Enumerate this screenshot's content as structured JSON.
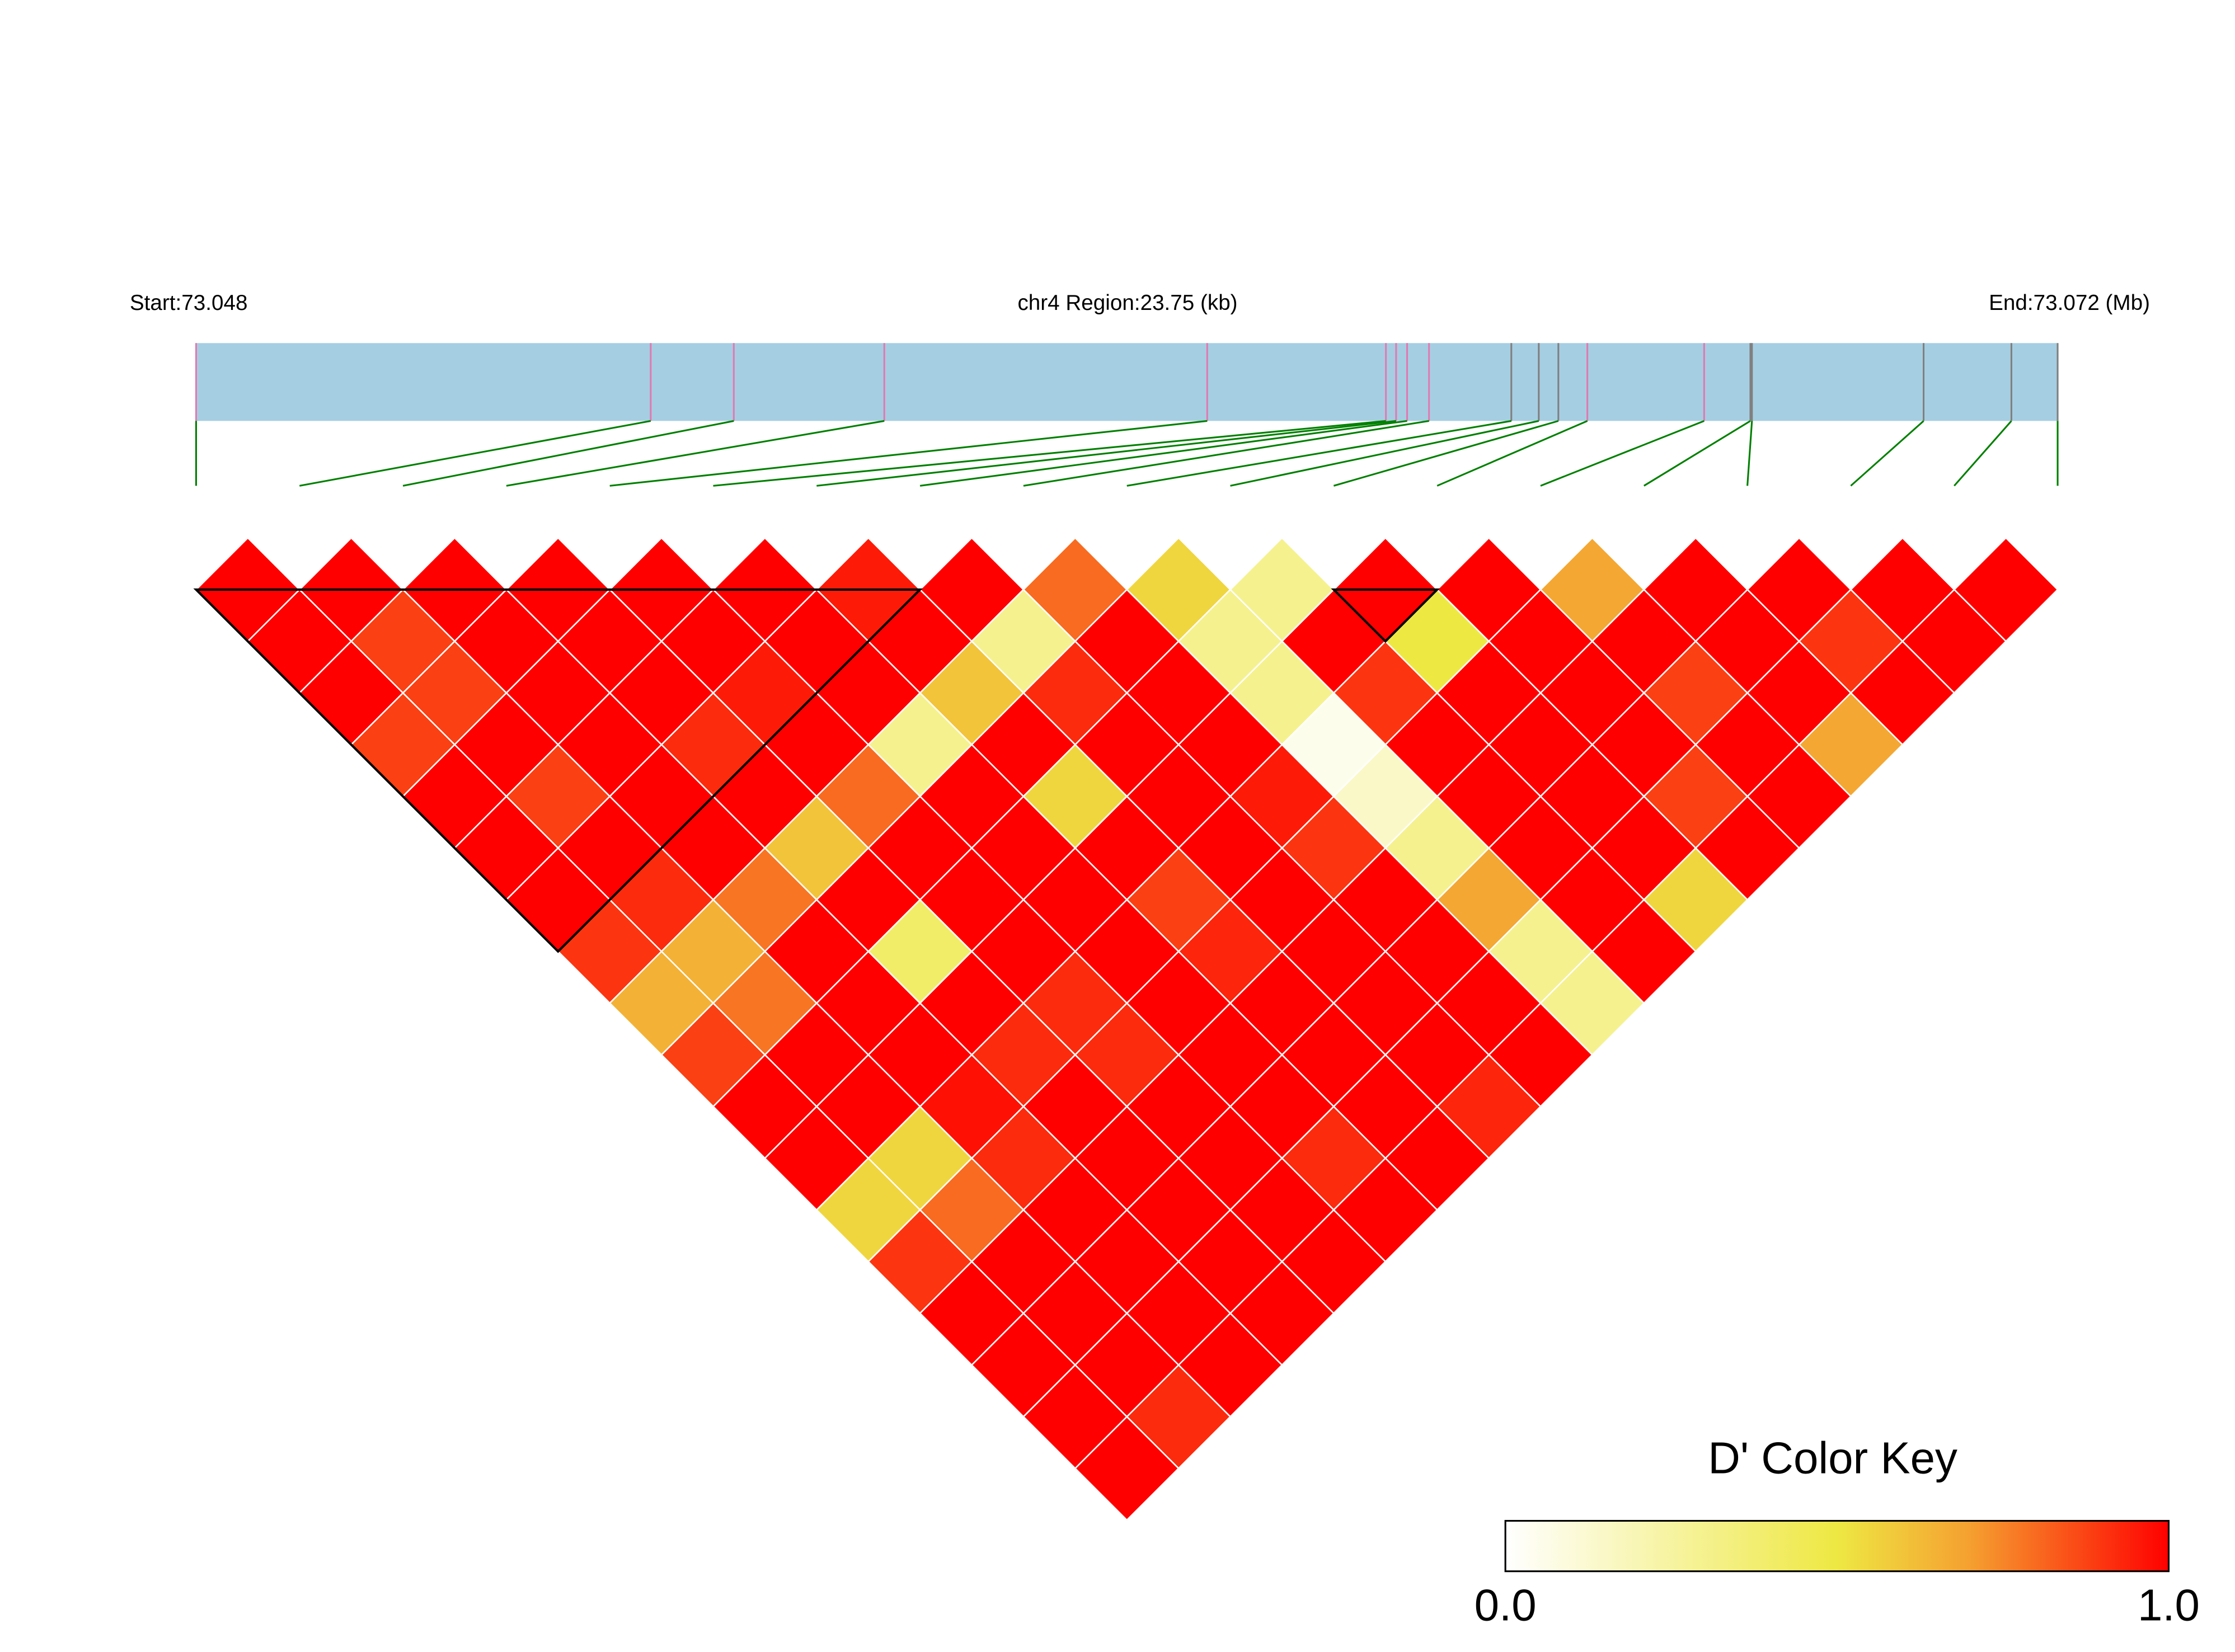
{
  "chart_data": {
    "type": "ld_heatmap",
    "region_start_label": "Start:73.048",
    "region_label": "chr4 Region:23.75 (kb)",
    "region_end_label": "End:73.072 (Mb)",
    "xlim": [
      73.048,
      73.07175
    ],
    "positions": [
      73.048,
      73.0538,
      73.05486,
      73.05678,
      73.0609,
      73.06318,
      73.06331,
      73.06345,
      73.06373,
      73.06478,
      73.06513,
      73.06538,
      73.06575,
      73.06724,
      73.06783,
      73.06785,
      73.07004,
      73.07116,
      73.07175
    ],
    "marker_colors": [
      "#e07ab0",
      "#e07ab0",
      "#e07ab0",
      "#e07ab0",
      "#e07ab0",
      "#e07ab0",
      "#e07ab0",
      "#e07ab0",
      "#e07ab0",
      "#808080",
      "#808080",
      "#808080",
      "#e07ab0",
      "#e07ab0",
      "#808080",
      "#808080",
      "#808080",
      "#808080",
      "#808080"
    ],
    "track_color": "#a6cee3",
    "connector_color": "#008000",
    "diagonals": [
      [
        1,
        1,
        1,
        1,
        1,
        1,
        0.95,
        1,
        0.8,
        0.55,
        0.3,
        1,
        1,
        0.68,
        1,
        1,
        1,
        1
      ],
      [
        1,
        0.88,
        1,
        1,
        1,
        1,
        1,
        0.3,
        1,
        0.3,
        1,
        0.5,
        1,
        1,
        1,
        0.9,
        1
      ],
      [
        1,
        0.88,
        1,
        1,
        0.95,
        1,
        0.6,
        0.92,
        1,
        0.3,
        0.9,
        1,
        1,
        0.88,
        1,
        1
      ],
      [
        0.88,
        1,
        1,
        0.92,
        1,
        0.3,
        1,
        1,
        1,
        0.05,
        1,
        1,
        1,
        1,
        0.68
      ],
      [
        1,
        0.88,
        1,
        1,
        0.8,
        1,
        0.55,
        1,
        0.95,
        0.15,
        1,
        1,
        0.88,
        1
      ],
      [
        1,
        1,
        1,
        0.6,
        1,
        1,
        1,
        1,
        0.9,
        0.3,
        1,
        1,
        1
      ],
      [
        1,
        0.92,
        0.78,
        1,
        1,
        1,
        0.88,
        1,
        1,
        0.68,
        1,
        0.55
      ],
      [
        0.9,
        0.65,
        1,
        0.4,
        1,
        1,
        0.93,
        1,
        1,
        0.3,
        1
      ],
      [
        0.65,
        0.78,
        1,
        1,
        0.92,
        1,
        1,
        1,
        1,
        0.3
      ],
      [
        0.88,
        1,
        1,
        0.92,
        0.92,
        1,
        1,
        1,
        1
      ],
      [
        1,
        1,
        0.97,
        1,
        1,
        1,
        1,
        0.93
      ],
      [
        1,
        0.55,
        0.92,
        1,
        1,
        0.92,
        1
      ],
      [
        0.55,
        0.8,
        1,
        1,
        1,
        1
      ],
      [
        0.9,
        1,
        1,
        1,
        1
      ],
      [
        1,
        1,
        1,
        1
      ],
      [
        1,
        1,
        1
      ],
      [
        1,
        0.92
      ],
      [
        1
      ]
    ],
    "blocks": [
      [
        0,
        7
      ],
      [
        11,
        12
      ]
    ],
    "colorscale": [
      [
        0,
        "#ffffff"
      ],
      [
        0.5,
        "#eee843"
      ],
      [
        0.7,
        "#f5a030"
      ],
      [
        1,
        "#ff0000"
      ]
    ],
    "legend_title": "D' Color Key",
    "legend_lim": [
      0,
      1
    ],
    "legend_ticks": [
      {
        "value": 0,
        "label": "0.0"
      },
      {
        "value": 1,
        "label": "1.0"
      }
    ]
  }
}
